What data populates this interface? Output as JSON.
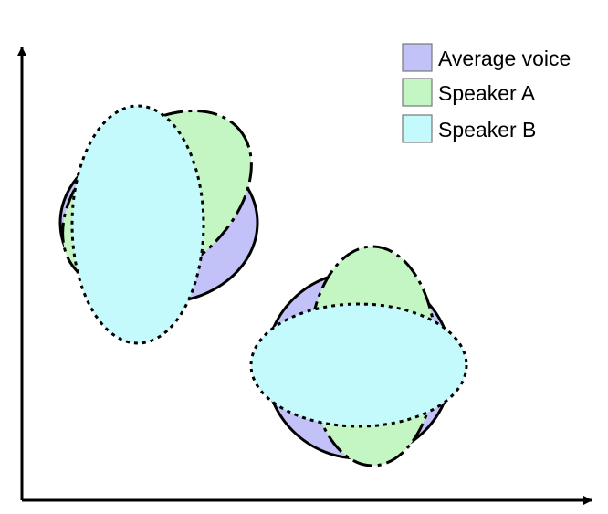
{
  "legend": {
    "items": [
      {
        "label": "Average voice",
        "color": "#c2c2f8"
      },
      {
        "label": "Speaker A",
        "color": "#c4f6c4"
      },
      {
        "label": "Speaker B",
        "color": "#c4fafc"
      }
    ]
  },
  "colors": {
    "axis": "#000000",
    "outline": "#000000"
  }
}
